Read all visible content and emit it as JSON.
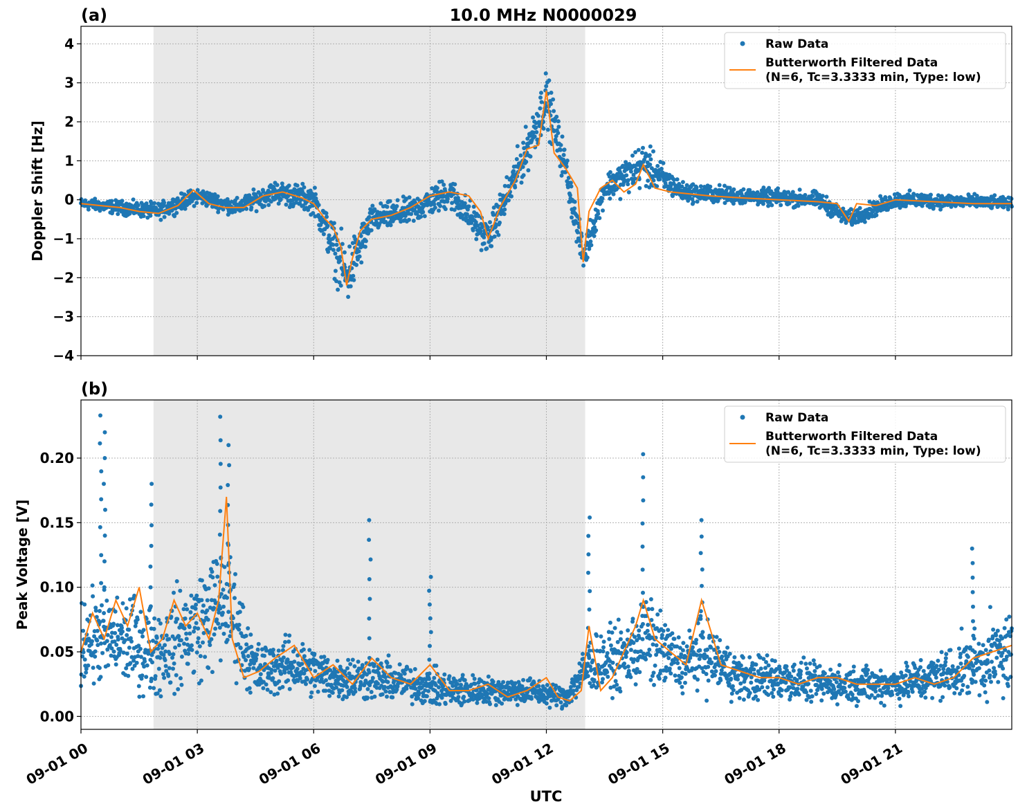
{
  "figure": {
    "title": "10.0 MHz N0000029",
    "xlabel": "UTC",
    "xticks": [
      "09-01 00",
      "09-01 03",
      "09-01 06",
      "09-01 09",
      "09-01 12",
      "09-01 15",
      "09-01 18",
      "09-01 21"
    ],
    "shaded_region_hours": [
      1.87,
      13.0
    ],
    "colors": {
      "raw": "#1f77b4",
      "filtered": "#ff7f0e",
      "shade": "#e8e8e8"
    },
    "legend": {
      "raw": "Raw Data",
      "filtered_line1": "Butterworth Filtered Data",
      "filtered_line2": "(N=6, Tc=3.3333 min, Type: low)"
    }
  },
  "chart_data": [
    {
      "type": "scatter",
      "panel_label": "(a)",
      "title": "10.0 MHz N0000029",
      "xlabel": "",
      "ylabel": "Doppler Shift [Hz]",
      "xlim": [
        0,
        24
      ],
      "ylim": [
        -4,
        4.45
      ],
      "yticks": [
        -4,
        -3,
        -2,
        -1,
        0,
        1,
        2,
        3,
        4
      ],
      "ytick_labels": [
        "−4",
        "−3",
        "−2",
        "−1",
        "0",
        "1",
        "2",
        "3",
        "4"
      ],
      "grid": true,
      "legend_position": "top-right",
      "series": [
        {
          "name": "Butterworth Filtered Data (N=6, Tc=3.3333 min, Type: low)",
          "x": [
            0,
            0.5,
            1.0,
            1.5,
            2.0,
            2.5,
            2.9,
            3.3,
            3.7,
            4.2,
            4.7,
            5.2,
            5.7,
            6.0,
            6.3,
            6.5,
            6.7,
            6.85,
            7.0,
            7.2,
            7.5,
            8.0,
            8.5,
            9.0,
            9.5,
            10.0,
            10.3,
            10.5,
            10.8,
            11.2,
            11.5,
            11.8,
            12.0,
            12.2,
            12.5,
            12.8,
            12.95,
            13.1,
            13.4,
            13.7,
            14.0,
            14.3,
            14.5,
            14.8,
            15.2,
            15.7,
            16.2,
            17.0,
            18.0,
            19.0,
            19.5,
            19.8,
            20.0,
            20.5,
            21.0,
            22.0,
            23.0,
            24.0
          ],
          "y": [
            -0.1,
            -0.15,
            -0.2,
            -0.3,
            -0.35,
            -0.15,
            0.25,
            -0.1,
            -0.2,
            -0.2,
            0.1,
            0.2,
            0.05,
            -0.1,
            -0.5,
            -0.7,
            -1.2,
            -2.2,
            -1.5,
            -0.8,
            -0.5,
            -0.4,
            -0.2,
            0.1,
            0.2,
            0.1,
            -0.3,
            -1.0,
            -0.2,
            0.5,
            1.3,
            1.4,
            2.8,
            1.2,
            0.8,
            0.3,
            -1.6,
            -0.3,
            0.3,
            0.5,
            0.2,
            0.4,
            0.9,
            0.3,
            0.2,
            0.15,
            0.1,
            0.05,
            0.0,
            -0.05,
            -0.1,
            -0.55,
            -0.1,
            -0.15,
            0.0,
            -0.05,
            -0.1,
            -0.1
          ]
        },
        {
          "name": "Raw Data",
          "x": [
            0,
            1,
            2,
            3,
            4,
            5,
            6,
            6.85,
            7.5,
            8.5,
            9.5,
            10.5,
            11.5,
            12.0,
            12.5,
            12.95,
            13.5,
            14.5,
            15.5,
            17,
            19,
            19.8,
            21,
            23,
            24
          ],
          "y_center": [
            -0.1,
            -0.2,
            -0.3,
            0.1,
            -0.2,
            0.2,
            0.0,
            -2.0,
            -0.5,
            -0.3,
            0.2,
            -1.0,
            1.3,
            2.6,
            0.8,
            -1.5,
            0.3,
            0.9,
            0.2,
            0.1,
            0.0,
            -0.5,
            0.0,
            -0.05,
            -0.1
          ],
          "y_spread": [
            0.2,
            0.25,
            0.3,
            0.3,
            0.3,
            0.4,
            0.5,
            1.2,
            0.5,
            0.5,
            0.6,
            0.6,
            0.8,
            1.0,
            0.7,
            0.6,
            0.5,
            0.8,
            0.35,
            0.3,
            0.3,
            0.3,
            0.3,
            0.25,
            0.2
          ]
        }
      ]
    },
    {
      "type": "scatter",
      "panel_label": "(b)",
      "title": "",
      "xlabel": "UTC",
      "ylabel": "Peak Voltage [V]",
      "xlim": [
        0,
        24
      ],
      "ylim": [
        -0.01,
        0.245
      ],
      "yticks": [
        0.0,
        0.05,
        0.1,
        0.15,
        0.2
      ],
      "ytick_labels": [
        "0.00",
        "0.05",
        "0.10",
        "0.15",
        "0.20"
      ],
      "grid": true,
      "legend_position": "top-right",
      "series": [
        {
          "name": "Butterworth Filtered Data (N=6, Tc=3.3333 min, Type: low)",
          "x": [
            0,
            0.3,
            0.6,
            0.9,
            1.2,
            1.5,
            1.8,
            2.1,
            2.4,
            2.7,
            3.0,
            3.3,
            3.55,
            3.75,
            3.9,
            4.2,
            4.6,
            5.0,
            5.5,
            6.0,
            6.5,
            7.0,
            7.5,
            8.0,
            8.5,
            9.0,
            9.5,
            10.0,
            10.5,
            11.0,
            11.5,
            12.0,
            12.3,
            12.6,
            12.9,
            13.1,
            13.4,
            13.7,
            14.0,
            14.3,
            14.5,
            14.8,
            15.2,
            15.6,
            16.0,
            16.5,
            17.0,
            17.5,
            18.0,
            18.5,
            19.0,
            19.5,
            20.0,
            20.5,
            21.0,
            21.5,
            22.0,
            22.5,
            23.0,
            23.5,
            24.0
          ],
          "y": [
            0.05,
            0.08,
            0.06,
            0.09,
            0.07,
            0.1,
            0.05,
            0.06,
            0.09,
            0.07,
            0.08,
            0.06,
            0.09,
            0.17,
            0.06,
            0.03,
            0.035,
            0.045,
            0.055,
            0.03,
            0.04,
            0.025,
            0.045,
            0.03,
            0.025,
            0.04,
            0.02,
            0.02,
            0.025,
            0.015,
            0.02,
            0.03,
            0.015,
            0.012,
            0.02,
            0.07,
            0.02,
            0.03,
            0.05,
            0.07,
            0.09,
            0.06,
            0.05,
            0.04,
            0.09,
            0.04,
            0.035,
            0.03,
            0.03,
            0.025,
            0.03,
            0.03,
            0.025,
            0.025,
            0.025,
            0.03,
            0.025,
            0.03,
            0.045,
            0.05,
            0.055
          ]
        },
        {
          "name": "Raw Data",
          "x": [
            0,
            1,
            2,
            3,
            3.75,
            4.5,
            5.5,
            6.5,
            7.5,
            8.5,
            9.5,
            10.5,
            11.5,
            12.5,
            13.1,
            14.0,
            14.5,
            15.5,
            16.0,
            17,
            18,
            19,
            20,
            21,
            22,
            23,
            24
          ],
          "y_center": [
            0.06,
            0.06,
            0.05,
            0.07,
            0.09,
            0.035,
            0.04,
            0.03,
            0.03,
            0.025,
            0.02,
            0.02,
            0.02,
            0.015,
            0.04,
            0.045,
            0.06,
            0.04,
            0.05,
            0.03,
            0.03,
            0.025,
            0.025,
            0.025,
            0.03,
            0.04,
            0.05
          ],
          "y_spread": [
            0.05,
            0.05,
            0.05,
            0.06,
            0.07,
            0.03,
            0.03,
            0.025,
            0.025,
            0.02,
            0.02,
            0.015,
            0.015,
            0.012,
            0.03,
            0.035,
            0.05,
            0.03,
            0.04,
            0.025,
            0.025,
            0.02,
            0.02,
            0.02,
            0.025,
            0.035,
            0.05
          ],
          "peaks": [
            [
              0.5,
              0.233
            ],
            [
              0.6,
              0.22
            ],
            [
              1.8,
              0.18
            ],
            [
              3.6,
              0.232
            ],
            [
              3.8,
              0.21
            ],
            [
              7.45,
              0.152
            ],
            [
              9.0,
              0.108
            ],
            [
              13.1,
              0.154
            ],
            [
              14.5,
              0.203
            ],
            [
              16.0,
              0.152
            ],
            [
              23.0,
              0.13
            ]
          ]
        }
      ]
    }
  ]
}
